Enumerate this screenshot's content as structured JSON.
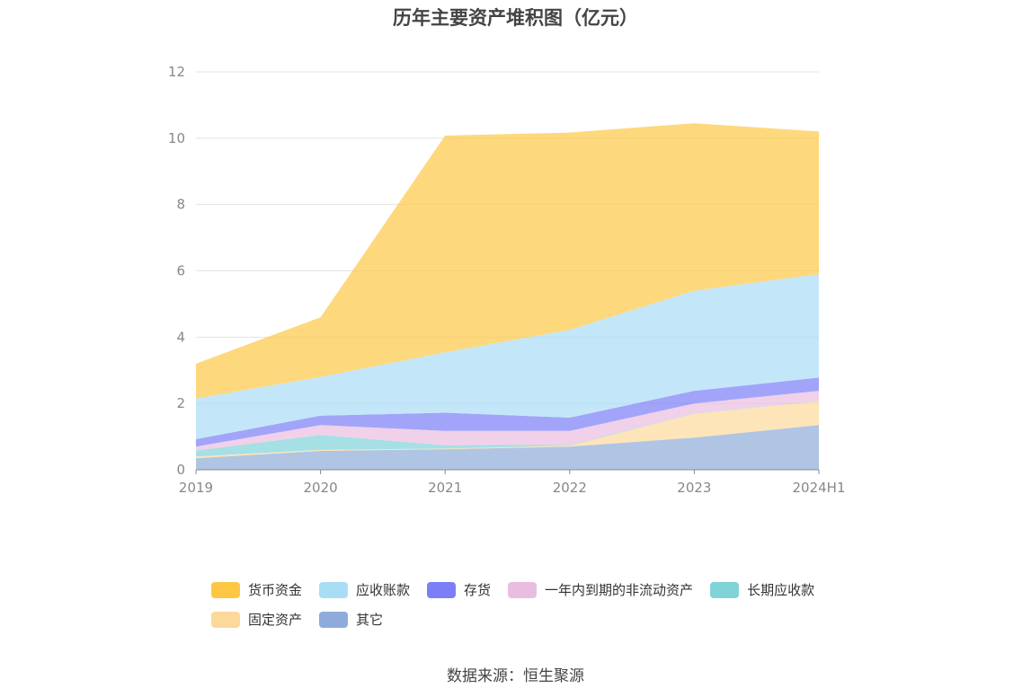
{
  "title": "历年主要资产堆积图（亿元）",
  "source": "数据来源：恒生聚源",
  "chart_data": {
    "type": "area",
    "stacked": true,
    "title": "历年主要资产堆积图（亿元）",
    "categories": [
      "2019",
      "2020",
      "2021",
      "2022",
      "2023",
      "2024H1"
    ],
    "ylim": [
      0,
      12
    ],
    "yticks": [
      0,
      2,
      4,
      6,
      8,
      10,
      12
    ],
    "grid": true,
    "legend_position": "bottom",
    "series": [
      {
        "name": "其它",
        "color": "#8eacd9",
        "values": [
          0.35,
          0.57,
          0.62,
          0.7,
          0.97,
          1.35
        ]
      },
      {
        "name": "固定资产",
        "color": "#fdd89b",
        "values": [
          0.05,
          0.03,
          0.02,
          0.03,
          0.72,
          0.72
        ]
      },
      {
        "name": "长期应收款",
        "color": "#7fd3d9",
        "values": [
          0.18,
          0.45,
          0.1,
          0.02,
          0.01,
          0.01
        ]
      },
      {
        "name": "一年内到期的非流动资产",
        "color": "#e9bde0",
        "values": [
          0.12,
          0.3,
          0.43,
          0.42,
          0.3,
          0.3
        ]
      },
      {
        "name": "存货",
        "color": "#7b7ef7",
        "values": [
          0.22,
          0.28,
          0.55,
          0.4,
          0.38,
          0.4
        ]
      },
      {
        "name": "应收账款",
        "color": "#a9ddf6",
        "values": [
          1.23,
          1.17,
          1.82,
          2.65,
          3.02,
          3.12
        ]
      },
      {
        "name": "货币资金",
        "color": "#fdc744",
        "values": [
          1.05,
          1.8,
          6.54,
          5.95,
          5.05,
          4.3
        ]
      }
    ]
  },
  "legend": [
    {
      "name": "货币资金",
      "color": "#fdc744"
    },
    {
      "name": "应收账款",
      "color": "#a9ddf6"
    },
    {
      "name": "存货",
      "color": "#7b7ef7"
    },
    {
      "name": "一年内到期的非流动资产",
      "color": "#e9bde0"
    },
    {
      "name": "长期应收款",
      "color": "#7fd3d9"
    },
    {
      "name": "固定资产",
      "color": "#fdd89b"
    },
    {
      "name": "其它",
      "color": "#8eacd9"
    }
  ]
}
